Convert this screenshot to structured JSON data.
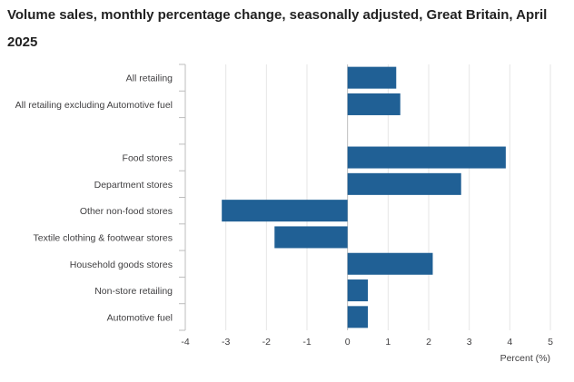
{
  "chart_data": {
    "type": "bar",
    "orientation": "horizontal",
    "title": "Volume sales, monthly percentage change, seasonally adjusted, Great Britain, April 2025",
    "xlabel": "Percent (%)",
    "ylabel": "",
    "xlim": [
      -4,
      5
    ],
    "xticks": [
      "-4",
      "-3",
      "-2",
      "-1",
      "0",
      "1",
      "2",
      "3",
      "4",
      "5"
    ],
    "grid": true,
    "bar_color": "#206095",
    "categories": [
      "All retailing",
      "All retailing excluding Automotive fuel",
      "",
      "Food stores",
      "Department stores",
      "Other non-food stores",
      "Textile clothing & footwear stores",
      "Household goods stores",
      "Non-store retailing",
      "Automotive fuel"
    ],
    "values": [
      1.2,
      1.3,
      null,
      3.9,
      2.8,
      -3.1,
      -1.8,
      2.1,
      0.5,
      0.5
    ]
  }
}
